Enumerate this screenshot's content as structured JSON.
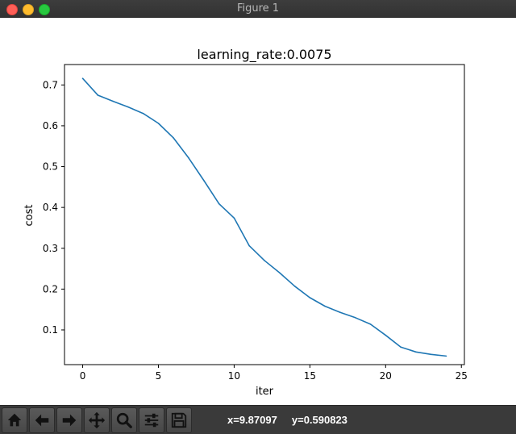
{
  "window": {
    "title": "Figure 1"
  },
  "chart_data": {
    "type": "line",
    "title": "learning_rate:0.0075",
    "xlabel": "iter",
    "ylabel": "cost",
    "xlim": [
      -1.2,
      25.2
    ],
    "ylim": [
      0.015,
      0.75
    ],
    "xticks": [
      0,
      5,
      10,
      15,
      20,
      25
    ],
    "yticks": [
      0.1,
      0.2,
      0.3,
      0.4,
      0.5,
      0.6,
      0.7
    ],
    "grid": false,
    "series": [
      {
        "color": "#1f77b4",
        "x": [
          0,
          1,
          2,
          3,
          4,
          5,
          6,
          7,
          8,
          9,
          10,
          11,
          12,
          13,
          14,
          15,
          16,
          17,
          18,
          19,
          20,
          21,
          22,
          23,
          24
        ],
        "y": [
          0.716,
          0.675,
          0.66,
          0.646,
          0.63,
          0.606,
          0.57,
          0.521,
          0.466,
          0.409,
          0.374,
          0.306,
          0.27,
          0.24,
          0.207,
          0.179,
          0.158,
          0.143,
          0.13,
          0.114,
          0.087,
          0.058,
          0.046,
          0.04,
          0.036
        ]
      }
    ]
  },
  "toolbar": {
    "buttons": [
      {
        "name": "home-button",
        "icon": "home-icon"
      },
      {
        "name": "back-button",
        "icon": "arrow-left-icon"
      },
      {
        "name": "forward-button",
        "icon": "arrow-right-icon"
      },
      {
        "name": "pan-button",
        "icon": "move-icon"
      },
      {
        "name": "zoom-button",
        "icon": "magnifier-icon"
      },
      {
        "name": "subplots-button",
        "icon": "sliders-icon"
      },
      {
        "name": "save-button",
        "icon": "floppy-disk-icon"
      }
    ],
    "coords": "x=9.87097     y=0.590823"
  }
}
